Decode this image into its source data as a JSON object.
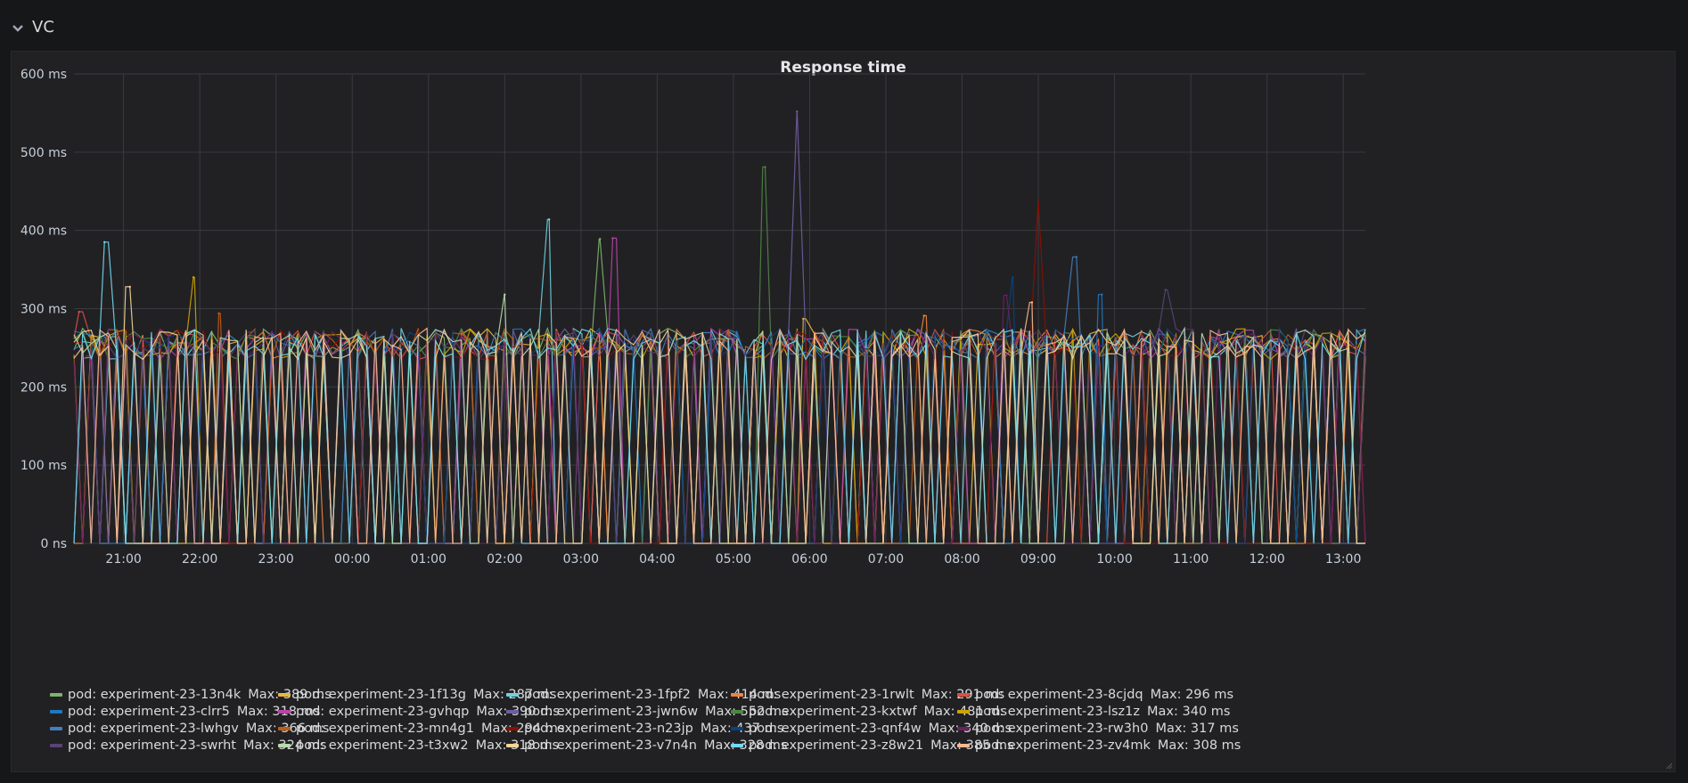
{
  "row": {
    "title": "VC",
    "icon": "chevron-down-icon"
  },
  "panel": {
    "title": "Response time"
  },
  "chart_data": {
    "type": "line",
    "title": "Response time",
    "xlabel": "",
    "ylabel": "",
    "ylim": [
      0,
      600
    ],
    "yunit": "ms",
    "y_ticks": [
      "0 ns",
      "100 ms",
      "200 ms",
      "300 ms",
      "400 ms",
      "500 ms",
      "600 ms"
    ],
    "x_ticks": [
      "21:00",
      "22:00",
      "23:00",
      "00:00",
      "01:00",
      "02:00",
      "03:00",
      "04:00",
      "05:00",
      "06:00",
      "07:00",
      "08:00",
      "09:00",
      "10:00",
      "11:00",
      "12:00",
      "13:00"
    ],
    "x_range_hours": [
      20.35,
      13.29
    ],
    "grid": true,
    "legend_placement": "bottom",
    "series": [
      {
        "name": "pod: experiment-23-13n4k",
        "max": "Max: 389 ms",
        "color": "#7eb26d",
        "peak_value": 389,
        "peak_time": "03:15"
      },
      {
        "name": "pod: experiment-23-1f13g",
        "max": "Max: 287 ms",
        "color": "#eab839",
        "peak_value": 287,
        "peak_time": "05:55"
      },
      {
        "name": "pod: experiment-23-1fpf2",
        "max": "Max: 414 ms",
        "color": "#6ed0e0",
        "peak_value": 414,
        "peak_time": "02:35"
      },
      {
        "name": "pod: experiment-23-1rwlt",
        "max": "Max: 291 ms",
        "color": "#ef843c",
        "peak_value": 291,
        "peak_time": "07:30"
      },
      {
        "name": "pod: experiment-23-8cjdq",
        "max": "Max: 296 ms",
        "color": "#e24d42",
        "peak_value": 296,
        "peak_time": "20:25"
      },
      {
        "name": "pod: experiment-23-clrr5",
        "max": "Max: 318 ms",
        "color": "#1f78c1",
        "peak_value": 318,
        "peak_time": "09:50"
      },
      {
        "name": "pod: experiment-23-gvhqp",
        "max": "Max: 390 ms",
        "color": "#ba43a9",
        "peak_value": 390,
        "peak_time": "03:25"
      },
      {
        "name": "pod: experiment-23-jwn6w",
        "max": "Max: 552 ms",
        "color": "#705da0",
        "peak_value": 552,
        "peak_time": "05:50"
      },
      {
        "name": "pod: experiment-23-kxtwf",
        "max": "Max: 481 ms",
        "color": "#508642",
        "peak_value": 481,
        "peak_time": "05:25"
      },
      {
        "name": "pod: experiment-23-lsz1z",
        "max": "Max: 340 ms",
        "color": "#cca300",
        "peak_value": 340,
        "peak_time": "21:55"
      },
      {
        "name": "pod: experiment-23-lwhgv",
        "max": "Max: 366 ms",
        "color": "#447ebc",
        "peak_value": 366,
        "peak_time": "09:30"
      },
      {
        "name": "pod: experiment-23-mn4g1",
        "max": "Max: 294 ms",
        "color": "#c15c17",
        "peak_value": 294,
        "peak_time": "22:15"
      },
      {
        "name": "pod: experiment-23-n23jp",
        "max": "Max: 437 ms",
        "color": "#890f02",
        "peak_value": 437,
        "peak_time": "09:00"
      },
      {
        "name": "pod: experiment-23-qnf4w",
        "max": "Max: 340 ms",
        "color": "#0a437c",
        "peak_value": 340,
        "peak_time": "08:40"
      },
      {
        "name": "pod: experiment-23-rw3h0",
        "max": "Max: 317 ms",
        "color": "#6d1f62",
        "peak_value": 317,
        "peak_time": "08:35"
      },
      {
        "name": "pod: experiment-23-swrht",
        "max": "Max: 324 ms",
        "color": "#584477",
        "peak_value": 324,
        "peak_time": "10:40"
      },
      {
        "name": "pod: experiment-23-t3xw2",
        "max": "Max: 318 ms",
        "color": "#b7dbab",
        "peak_value": 318,
        "peak_time": "02:00"
      },
      {
        "name": "pod: experiment-23-v7n4n",
        "max": "Max: 328 ms",
        "color": "#f4d598",
        "peak_value": 328,
        "peak_time": "21:05"
      },
      {
        "name": "pod: experiment-23-z8w21",
        "max": "Max: 385 ms",
        "color": "#70dbed",
        "peak_value": 385,
        "peak_time": "20:45"
      },
      {
        "name": "pod: experiment-23-zv4mk",
        "max": "Max: 308 ms",
        "color": "#f9ba8f",
        "peak_value": 308,
        "peak_time": "08:55"
      }
    ]
  }
}
